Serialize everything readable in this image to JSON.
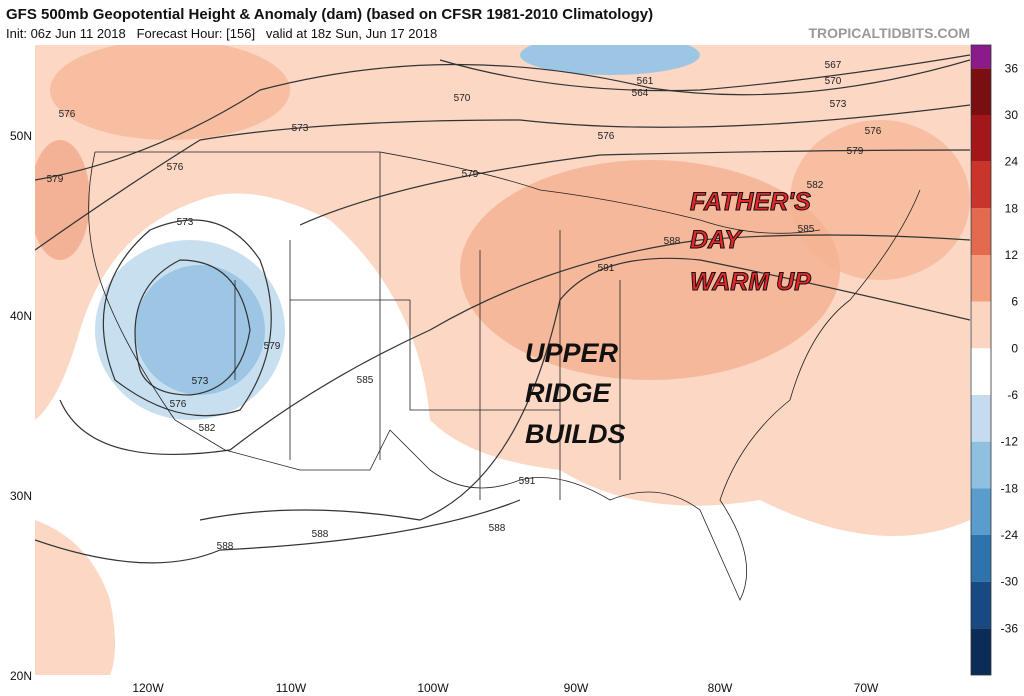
{
  "header": {
    "title": "GFS 500mb Geopotential Height & Anomaly (dam) (based on CFSR 1981-2010 Climatology)",
    "subtitle": "Init: 06z Jun 11 2018   Forecast Hour: [156]   valid at 18z Sun, Jun 17 2018",
    "watermark": "TROPICALTIDBITS.COM"
  },
  "map": {
    "lat_labels": [
      "50N",
      "40N",
      "30N",
      "20N"
    ],
    "lon_labels": [
      "120W",
      "110W",
      "100W",
      "90W",
      "80W",
      "70W"
    ],
    "contour_labels": [
      "561",
      "564",
      "567",
      "570",
      "573",
      "576",
      "579",
      "582",
      "585",
      "570",
      "573",
      "576",
      "579",
      "576",
      "576",
      "579",
      "573",
      "579",
      "573",
      "576",
      "582",
      "585",
      "591",
      "588",
      "591",
      "588",
      "588",
      "588"
    ],
    "annotations": [
      "FATHER'S",
      "DAY",
      "WARM UP",
      "UPPER",
      "RIDGE",
      "BUILDS"
    ]
  },
  "colorbar": {
    "ticks": [
      36,
      30,
      24,
      18,
      12,
      6,
      0,
      -6,
      -12,
      -18,
      -24,
      -30,
      -36
    ]
  }
}
